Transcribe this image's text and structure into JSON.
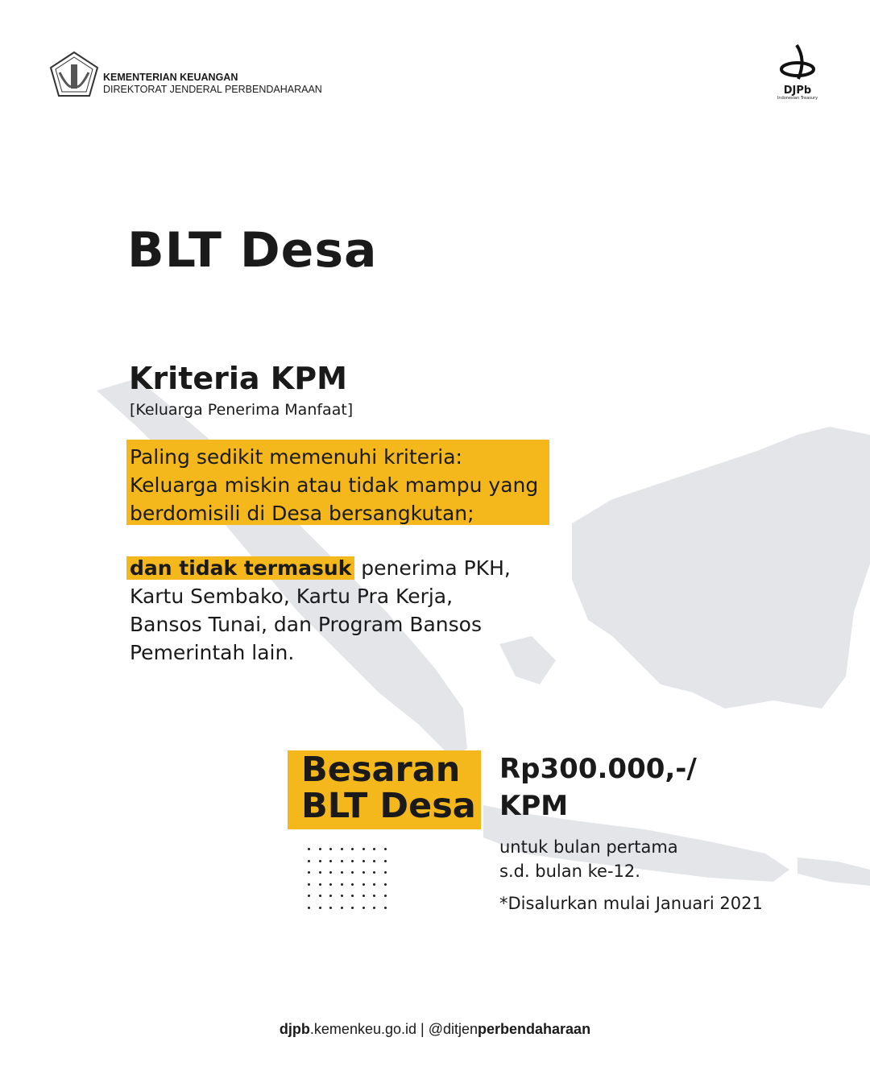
{
  "header": {
    "org_line1": "KEMENTERIAN KEUANGAN",
    "org_line2": "DIREKTORAT JENDERAL PERBENDAHARAAN",
    "logo_right_text": "DJPb",
    "logo_right_tagline": "Indonesian Treasury"
  },
  "title": "BLT Desa",
  "criteria": {
    "heading": "Kriteria KPM",
    "subheading": "[Keluarga Penerima Manfaat]",
    "highlight_lines": [
      "Paling sedikit memenuhi kriteria:",
      "Keluarga miskin atau tidak mampu yang",
      "berdomisili di Desa bersangkutan;"
    ],
    "exclusion_bold": "dan tidak termasuk",
    "exclusion_rest": " penerima PKH,",
    "exclusion_lines": [
      "Kartu Sembako, Kartu Pra Kerja,",
      "Bansos Tunai, dan Program Bansos",
      "Pemerintah lain."
    ]
  },
  "amount": {
    "label_line1": "Besaran",
    "label_line2": "BLT Desa",
    "value_line1": "Rp300.000,-/",
    "value_line2": "KPM",
    "period_line1": "untuk bulan pertama",
    "period_line2": "s.d. bulan ke-12.",
    "note": "*Disalurkan mulai Januari 2021"
  },
  "footer": {
    "site_bold": "djpb",
    "site_rest": ".kemenkeu.go.id",
    "separator": " | ",
    "handle_prefix": "@ditjen",
    "handle_bold": "perbendaharaan"
  },
  "colors": {
    "accent": "#f4b81c",
    "map": "#e3e5e9"
  }
}
